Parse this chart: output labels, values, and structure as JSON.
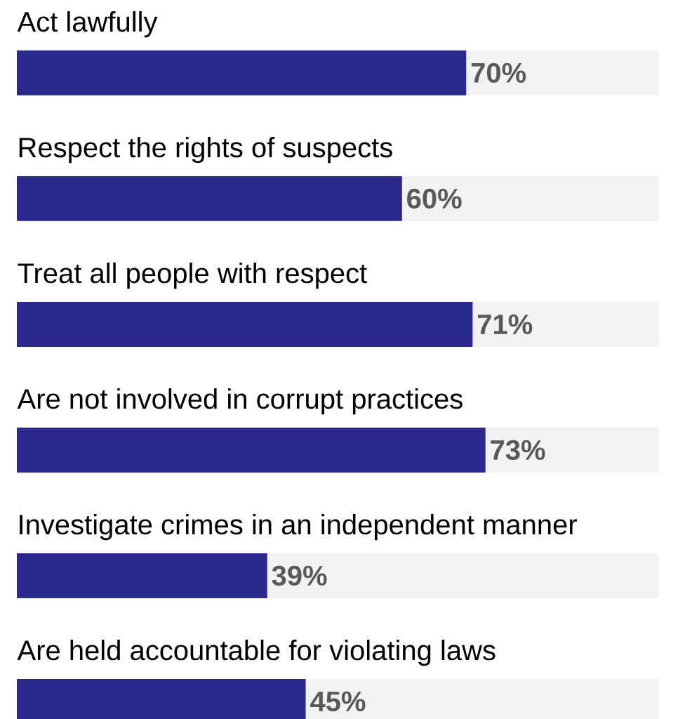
{
  "chart_data": {
    "type": "bar",
    "orientation": "horizontal",
    "categories": [
      "Act lawfully",
      "Respect the rights of suspects",
      "Treat all people with respect",
      "Are not involved in corrupt practices",
      "Investigate crimes in an independent manner",
      "Are held accountable for violating laws"
    ],
    "values": [
      70,
      60,
      71,
      73,
      39,
      45
    ],
    "value_labels": [
      "70%",
      "60%",
      "71%",
      "73%",
      "39%",
      "45%"
    ],
    "color": "#2b2a8c",
    "xlim": [
      0,
      100
    ]
  }
}
